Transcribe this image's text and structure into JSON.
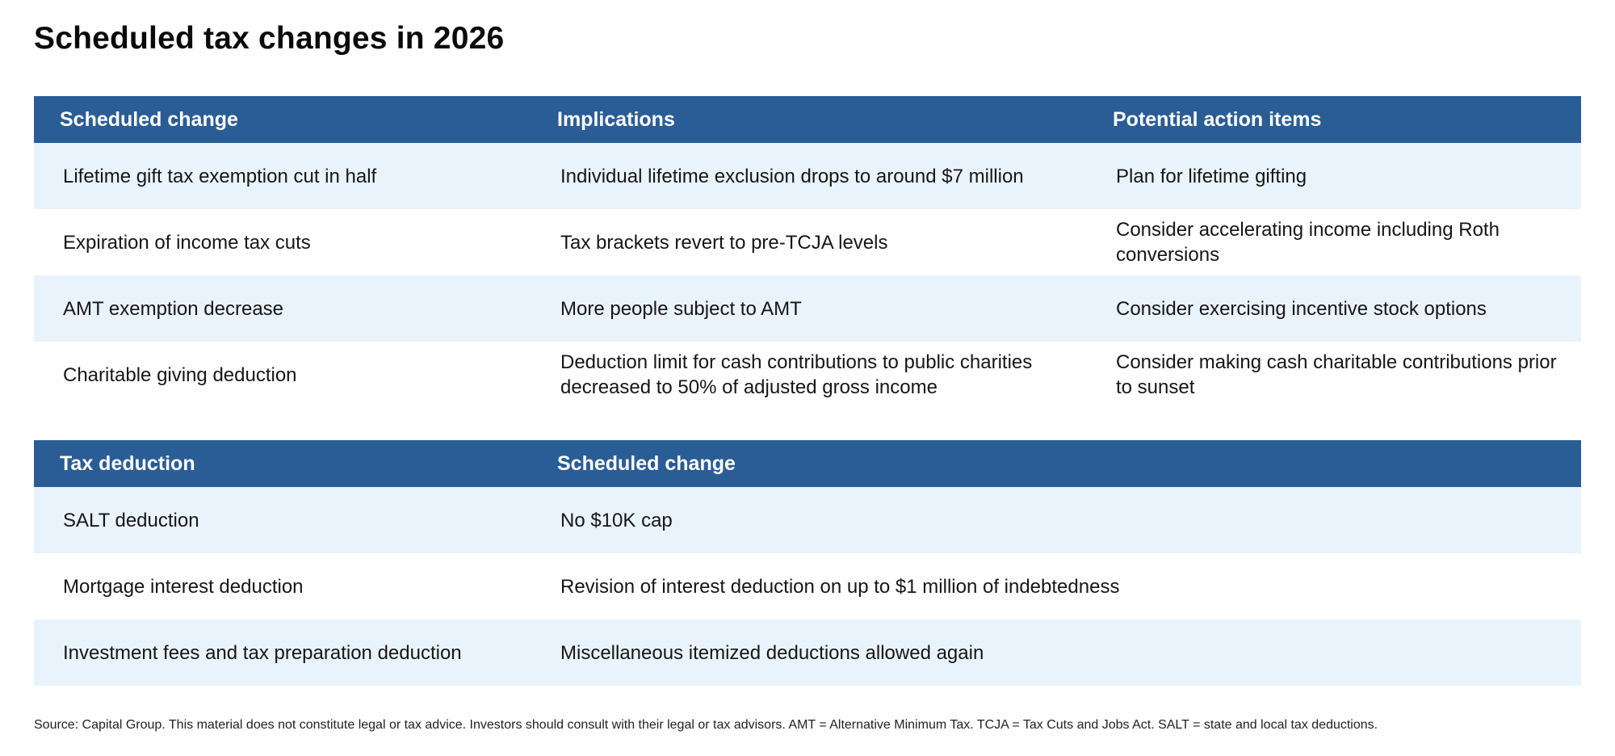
{
  "title": "Scheduled tax changes in 2026",
  "changes_table": {
    "headers": [
      "Scheduled change",
      "Implications",
      "Potential action items"
    ],
    "rows": [
      [
        "Lifetime gift tax exemption cut in half",
        "Individual lifetime exclusion drops to around $7 million",
        "Plan for lifetime gifting"
      ],
      [
        "Expiration of income tax cuts",
        "Tax brackets revert to pre-TCJA levels",
        "Consider accelerating income including Roth conversions"
      ],
      [
        "AMT exemption decrease",
        "More people subject to AMT",
        "Consider exercising incentive stock options"
      ],
      [
        "Charitable giving deduction",
        "Deduction limit for cash contributions to public charities decreased to 50% of adjusted gross income",
        "Consider making cash charitable contributions prior to sunset"
      ]
    ]
  },
  "deductions_table": {
    "headers": [
      "Tax deduction",
      "Scheduled change"
    ],
    "rows": [
      [
        "SALT deduction",
        "No $10K cap"
      ],
      [
        "Mortgage interest deduction",
        "Revision of interest deduction on up to $1 million of indebtedness"
      ],
      [
        "Investment fees and tax preparation deduction",
        "Miscellaneous itemized deductions allowed again"
      ]
    ]
  },
  "source": "Source: Capital Group. This material does not constitute legal or tax advice. Investors should consult with their legal or tax advisors. AMT = Alternative Minimum Tax. TCJA = Tax Cuts and Jobs Act. SALT = state and local tax deductions.",
  "colors": {
    "header_bg": "#2a5d96",
    "stripe_bg": "#e9f3fb"
  }
}
